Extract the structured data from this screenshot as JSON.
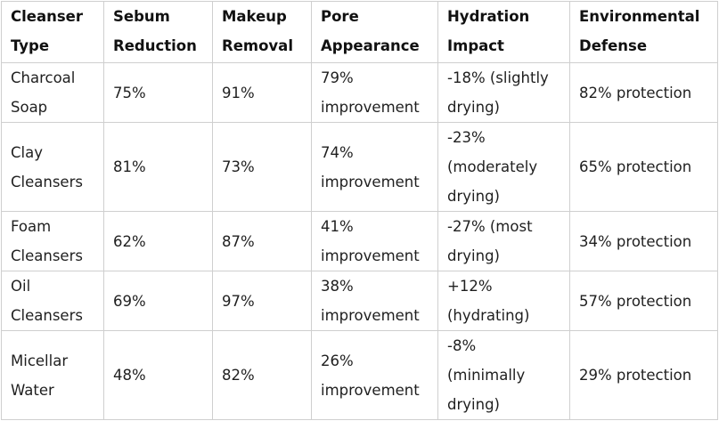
{
  "headers": [
    [
      "Cleanser",
      "Type"
    ],
    [
      "Sebum",
      "Reduction"
    ],
    [
      "Makeup",
      "Removal"
    ],
    [
      "Pore",
      "Appearance"
    ],
    [
      "Hydration",
      "Impact"
    ],
    [
      "Environmental",
      "Defense"
    ]
  ],
  "rows": [
    {
      "type": [
        "Charcoal",
        "Soap"
      ],
      "sebum": "75%",
      "makeup": "91%",
      "pore": [
        "79%",
        "improvement"
      ],
      "hydration": [
        "-18% (slightly",
        "drying)"
      ],
      "defense": "82% protection"
    },
    {
      "type": [
        "Clay",
        "Cleansers"
      ],
      "sebum": "81%",
      "makeup": "73%",
      "pore": [
        "74%",
        "improvement"
      ],
      "hydration": [
        "-23%",
        "(moderately",
        "drying)"
      ],
      "defense": "65% protection"
    },
    {
      "type": [
        "Foam",
        "Cleansers"
      ],
      "sebum": "62%",
      "makeup": "87%",
      "pore": [
        "41%",
        "improvement"
      ],
      "hydration": [
        "-27% (most",
        "drying)"
      ],
      "defense": "34% protection"
    },
    {
      "type": [
        "Oil",
        "Cleansers"
      ],
      "sebum": "69%",
      "makeup": "97%",
      "pore": [
        "38%",
        "improvement"
      ],
      "hydration": [
        "+12%",
        "(hydrating)"
      ],
      "defense": "57% protection"
    },
    {
      "type": [
        "Micellar",
        "Water"
      ],
      "sebum": "48%",
      "makeup": "82%",
      "pore": [
        "26%",
        "improvement"
      ],
      "hydration": [
        "-8%",
        "(minimally",
        "drying)"
      ],
      "defense": "29% protection"
    }
  ]
}
